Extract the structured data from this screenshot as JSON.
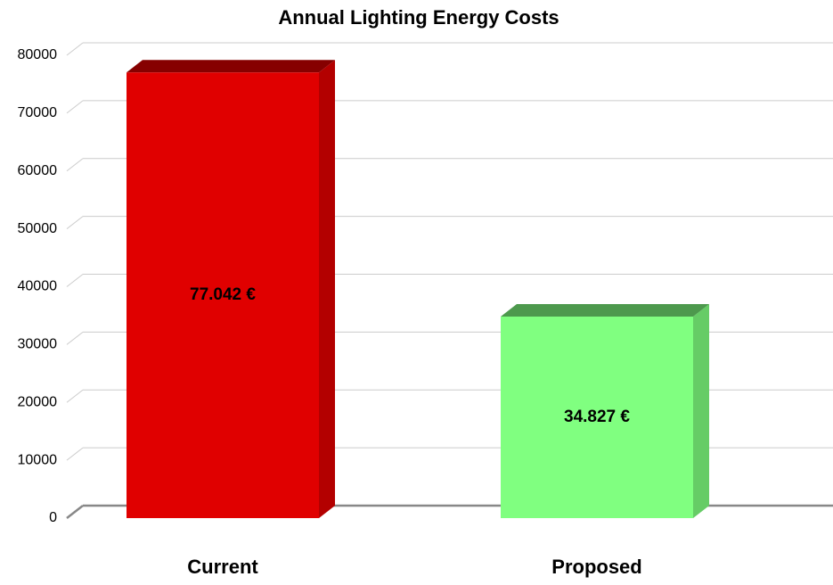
{
  "chart_data": {
    "type": "bar3d",
    "title": "Annual Lighting Energy Costs",
    "categories": [
      "Current",
      "Proposed"
    ],
    "values": [
      77042,
      34827
    ],
    "value_labels": [
      "77.042 €",
      "34.827 €"
    ],
    "colors": [
      "#e00000",
      "#80ff80"
    ],
    "ylim": [
      0,
      80000
    ],
    "yticks": [
      0,
      10000,
      20000,
      30000,
      40000,
      50000,
      60000,
      70000,
      80000
    ],
    "grid": true
  }
}
